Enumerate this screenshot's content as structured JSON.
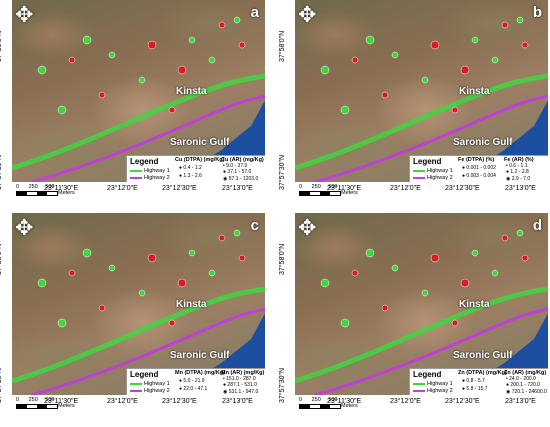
{
  "colors": {
    "highway1": "#3fd63f",
    "highway2": "#c03fd6",
    "dtpa": "#3fd63f",
    "ar": "#d61f1f",
    "sea": "#1d4fa0"
  },
  "common": {
    "place": "Kinsta",
    "gulf": "Saronic Gulf",
    "legend_title": "Legend",
    "highway1": "Highway 1",
    "highway2": "Highway 2",
    "lat_ticks": [
      "37°58'0\"N",
      "37°57'30\"N"
    ],
    "lon_ticks": [
      "23°11'30\"E",
      "23°12'0\"E",
      "23°12'30\"E",
      "23°13'0\"E"
    ]
  },
  "panels": [
    {
      "label": "a",
      "dtpa_title": "Cu (DTPA) (mg/Kg)",
      "ar_title": "Cu (AR) (mg/Kg)",
      "dtpa_classes": [
        "0.4 - 1.2",
        "1.3 - 2.6"
      ],
      "ar_classes": [
        "9.0 - 37.0",
        "37.1 - 57.0",
        "57.1 - 1203.0"
      ],
      "scale": [
        "0",
        "250",
        "500",
        "Meters"
      ]
    },
    {
      "label": "b",
      "dtpa_title": "Fe (DTPA) (%)",
      "ar_title": "Fe (AR) (%)",
      "dtpa_classes": [
        "0.001 - 0.002",
        "0.003 - 0.004"
      ],
      "ar_classes": [
        "0.6 - 1.1",
        "1.2 - 2.8",
        "2.9 - 7.0"
      ],
      "scale": [
        "0",
        "250",
        "500",
        "Meters"
      ]
    },
    {
      "label": "c",
      "dtpa_title": "Mn (DTPA) (mg/Kg)",
      "ar_title": "Mn (AR) (mg/Kg)",
      "dtpa_classes": [
        "5.0 - 21.9",
        "22.0 - 47.1"
      ],
      "ar_classes": [
        "151.0 - 287.0",
        "287.1 - 531.0",
        "531.1 - 947.0"
      ],
      "scale": [
        "0",
        "250",
        "500",
        "Meters"
      ]
    },
    {
      "label": "d",
      "dtpa_title": "Zn (DTPA) (mg/Kg)",
      "ar_title": "Zn (AR) (mg/Kg)",
      "dtpa_classes": [
        "0.8 - 5.7",
        "5.8 - 15.7"
      ],
      "ar_classes": [
        "24.0 - 200.0",
        "200.1 - 720.0",
        "720.1 - 24600.0"
      ],
      "scale": [
        "0",
        "250",
        "500",
        "Meters"
      ]
    }
  ]
}
